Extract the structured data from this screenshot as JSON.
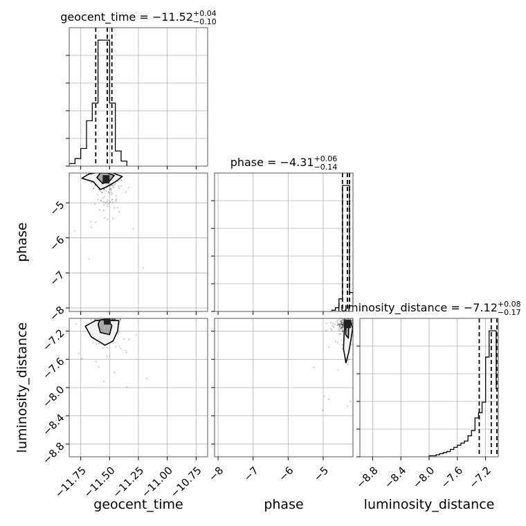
{
  "chart_data": {
    "type": "corner",
    "params": [
      "geocent_time",
      "phase",
      "luminosity_distance"
    ],
    "titles": [
      {
        "param": "geocent_time",
        "median": "−11.52",
        "plus": "+0.04",
        "minus": "−0.10"
      },
      {
        "param": "phase",
        "median": "−4.31",
        "plus": "+0.06",
        "minus": "−0.14"
      },
      {
        "param": "luminosity_distance",
        "median": "−7.12",
        "plus": "+0.08",
        "minus": "−0.17"
      }
    ],
    "axes": {
      "geocent_time": {
        "range": [
          -11.85,
          -10.65
        ],
        "ticks": [
          -11.75,
          -11.5,
          -11.25,
          -11.0,
          -10.75
        ],
        "tick_labels": [
          "−11.75",
          "−11.50",
          "−11.25",
          "−11.00",
          "−10.75"
        ],
        "label": "geocent_time"
      },
      "phase": {
        "range": [
          -8.1,
          -4.15
        ],
        "ticks": [
          -8,
          -7,
          -6,
          -5
        ],
        "tick_labels": [
          "−8",
          "−7",
          "−6",
          "−5"
        ],
        "label": "phase"
      },
      "luminosity_distance": {
        "range": [
          -8.98,
          -7.02
        ],
        "ticks": [
          -8.8,
          -8.4,
          -8.0,
          -7.6,
          -7.2
        ],
        "tick_labels": [
          "−8.8",
          "−8.4",
          "−8.0",
          "−7.6",
          "−7.2"
        ],
        "label": "luminosity_distance"
      }
    },
    "grid": true,
    "quantile_lines": {
      "geocent_time": [
        -11.62,
        -11.52,
        -11.48
      ],
      "phase": [
        -4.45,
        -4.31,
        -4.25
      ],
      "luminosity_distance": [
        -7.29,
        -7.12,
        -7.04
      ]
    },
    "histograms": {
      "geocent_time": {
        "edges": [
          -11.85,
          -11.8,
          -11.75,
          -11.7,
          -11.65,
          -11.6,
          -11.55,
          -11.5,
          -11.45,
          -11.4,
          -11.35
        ],
        "counts": [
          1,
          3,
          7,
          18,
          25,
          50,
          50,
          25,
          6,
          2
        ]
      },
      "phase": {
        "edges": [
          -4.75,
          -4.65,
          -4.55,
          -4.45,
          -4.35,
          -4.25,
          -4.15
        ],
        "counts": [
          1,
          3,
          10,
          100,
          100,
          15
        ]
      },
      "luminosity_distance": {
        "edges": [
          -8.0,
          -7.95,
          -7.9,
          -7.85,
          -7.8,
          -7.75,
          -7.7,
          -7.65,
          -7.6,
          -7.55,
          -7.5,
          -7.45,
          -7.4,
          -7.35,
          -7.3,
          -7.25,
          -7.2,
          -7.15,
          -7.1,
          -7.05,
          -7.0
        ],
        "counts": [
          1,
          1,
          2,
          3,
          4,
          5,
          7,
          9,
          11,
          13,
          15,
          20,
          25,
          37,
          42,
          52,
          95,
          120,
          120,
          65
        ]
      }
    },
    "contours": {
      "phase_vs_geocent_time": {
        "outer": [
          [
            -11.74,
            -4.3
          ],
          [
            -11.64,
            -4.4
          ],
          [
            -11.58,
            -4.62
          ],
          [
            -11.53,
            -4.55
          ],
          [
            -11.45,
            -4.4
          ],
          [
            -11.39,
            -4.25
          ],
          [
            -11.47,
            -4.15
          ],
          [
            -11.58,
            -4.12
          ],
          [
            -11.68,
            -4.18
          ]
        ],
        "inner": [
          [
            -11.61,
            -4.28
          ],
          [
            -11.56,
            -4.45
          ],
          [
            -11.5,
            -4.38
          ],
          [
            -11.46,
            -4.22
          ],
          [
            -11.52,
            -4.15
          ],
          [
            -11.58,
            -4.15
          ]
        ],
        "peak": [
          -11.53,
          -4.33
        ]
      },
      "luminosity_distance_vs_geocent_time": {
        "outer": [
          [
            -11.71,
            -7.13
          ],
          [
            -11.66,
            -7.28
          ],
          [
            -11.54,
            -7.4
          ],
          [
            -11.47,
            -7.34
          ],
          [
            -11.43,
            -7.2
          ],
          [
            -11.42,
            -7.05
          ],
          [
            -11.62,
            -7.05
          ]
        ],
        "inner": [
          [
            -11.6,
            -7.1
          ],
          [
            -11.58,
            -7.22
          ],
          [
            -11.5,
            -7.25
          ],
          [
            -11.48,
            -7.12
          ],
          [
            -11.52,
            -7.04
          ],
          [
            -11.58,
            -7.04
          ]
        ],
        "peak": [
          -11.52,
          -7.05
        ]
      },
      "luminosity_distance_vs_phase": {
        "outer": [
          [
            -4.33,
            -7.05
          ],
          [
            -4.4,
            -7.2
          ],
          [
            -4.42,
            -7.45
          ],
          [
            -4.35,
            -7.65
          ],
          [
            -4.27,
            -7.5
          ],
          [
            -4.2,
            -7.3
          ],
          [
            -4.16,
            -7.16
          ],
          [
            -4.23,
            -7.05
          ]
        ],
        "inner": [
          [
            -4.35,
            -7.06
          ],
          [
            -4.36,
            -7.25
          ],
          [
            -4.28,
            -7.3
          ],
          [
            -4.27,
            -7.12
          ],
          [
            -4.28,
            -7.05
          ]
        ],
        "peak": [
          -4.31,
          -7.1
        ]
      }
    },
    "scatter_notes": "dense grey sample clouds around peaks with sparse outliers"
  }
}
